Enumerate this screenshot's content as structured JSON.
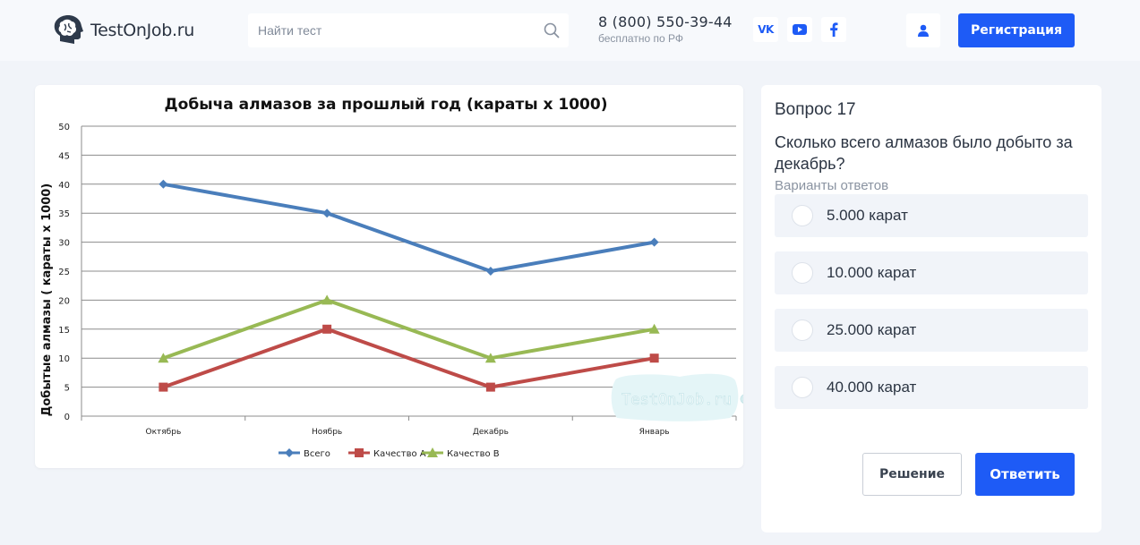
{
  "header": {
    "logo_text": "TestOnJob.ru",
    "search_placeholder": "Найти тест",
    "phone": "8 (800) 550-39-44",
    "phone_note": "бесплатно по РФ",
    "social": [
      "vk-icon",
      "youtube-icon",
      "facebook-icon"
    ],
    "social_labels": {
      "vk": "VK"
    },
    "register_label": "Регистрация",
    "accent_color": "#1e5bf6"
  },
  "chart_data": {
    "type": "line",
    "title": "Добыча алмазов за прошлый год (караты х 1000)",
    "ylabel": "Добытые алмазы ( караты х 1000)",
    "xlabel": "",
    "categories": [
      "Октябрь",
      "Ноябрь",
      "Декабрь",
      "Январь"
    ],
    "ylim": [
      0,
      50
    ],
    "yticks": [
      0,
      5,
      10,
      15,
      20,
      25,
      30,
      35,
      40,
      45,
      50
    ],
    "grid": true,
    "legend_position": "bottom",
    "watermark": "TestOnJob.ru ©",
    "series": [
      {
        "name": "Всего",
        "values": [
          40,
          35,
          25,
          30
        ],
        "color": "#4a7ebb",
        "marker": "diamond"
      },
      {
        "name": "Качество А",
        "values": [
          5,
          15,
          5,
          10
        ],
        "color": "#be4b48",
        "marker": "square"
      },
      {
        "name": "Качество В",
        "values": [
          10,
          20,
          10,
          15
        ],
        "color": "#98b954",
        "marker": "triangle"
      }
    ]
  },
  "question": {
    "number_label": "Вопрос 17",
    "text": "Сколько всего алмазов было добыто за декабрь?",
    "variants_label": "Варианты ответов",
    "options": [
      "5.000 карат",
      "10.000 карат",
      "25.000 карат",
      "40.000 карат"
    ],
    "solution_label": "Решение",
    "answer_label": "Ответить"
  }
}
